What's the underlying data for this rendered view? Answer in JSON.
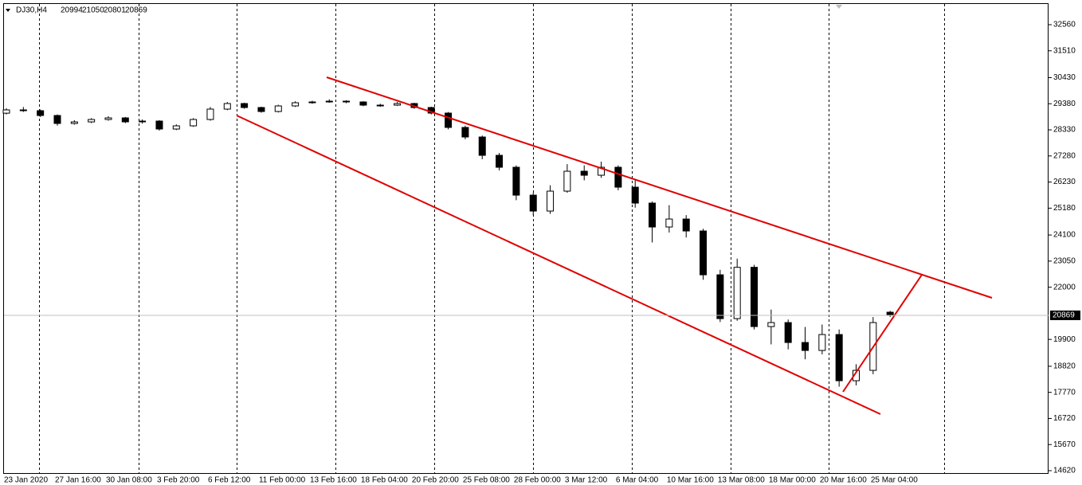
{
  "chart_data": {
    "type": "candlestick",
    "symbol": "DJ30,H4",
    "x_labels": [
      "23 Jan 2020",
      "27 Jan 16:00",
      "30 Jan 08:00",
      "3 Feb 20:00",
      "6 Feb 12:00",
      "11 Feb 00:00",
      "13 Feb 16:00",
      "18 Feb 04:00",
      "20 Feb 20:00",
      "25 Feb 08:00",
      "28 Feb 00:00",
      "3 Mar 12:00",
      "6 Mar 04:00",
      "10 Mar 16:00",
      "13 Mar 08:00",
      "18 Mar 00:00",
      "20 Mar 16:00",
      "25 Mar 04:00"
    ],
    "open": [
      29000,
      29132,
      29100,
      28907,
      28587,
      28650,
      28747,
      28811,
      28651,
      28683,
      28363,
      28491,
      28747,
      29164,
      29388,
      29228,
      29068,
      29292,
      29420,
      29452,
      29484,
      29452,
      29324,
      29324,
      29388,
      29228,
      29004,
      28427,
      28042,
      27305,
      26825,
      25703,
      25063,
      25864,
      26665,
      26504,
      26825,
      26024,
      25383,
      24422,
      24742,
      24262,
      22499,
      20737,
      22800,
      20417,
      20577,
      19776,
      19456,
      20096,
      18238,
      18655,
      20994
    ],
    "high": [
      29200,
      29250,
      29150,
      28950,
      28720,
      28800,
      28880,
      28850,
      28750,
      28720,
      28550,
      28800,
      29250,
      29450,
      29420,
      29260,
      29340,
      29480,
      29500,
      29560,
      29520,
      29480,
      29380,
      29450,
      29420,
      29260,
      29050,
      28500,
      28100,
      27400,
      26900,
      25800,
      26100,
      26950,
      26900,
      27050,
      26900,
      26300,
      25450,
      25300,
      24900,
      24350,
      22700,
      23150,
      22900,
      21100,
      20700,
      20400,
      20500,
      20300,
      18900,
      20800,
      21050
    ],
    "low": [
      28950,
      29050,
      28850,
      28500,
      28540,
      28600,
      28700,
      28600,
      28580,
      28300,
      28320,
      28450,
      28700,
      29120,
      29180,
      29020,
      29030,
      29250,
      29380,
      29420,
      29400,
      29280,
      29260,
      29290,
      29180,
      28950,
      28350,
      27950,
      27150,
      26700,
      25500,
      24900,
      24950,
      25800,
      26300,
      26400,
      25900,
      25200,
      23800,
      24200,
      24000,
      22300,
      20600,
      20650,
      20300,
      19700,
      19500,
      19100,
      19300,
      18000,
      18050,
      18500,
      20801
    ],
    "close": [
      29132,
      29100,
      28907,
      28587,
      28650,
      28747,
      28811,
      28651,
      28683,
      28363,
      28491,
      28747,
      29164,
      29388,
      29228,
      29068,
      29292,
      29420,
      29452,
      29484,
      29452,
      29324,
      29324,
      29388,
      29228,
      29004,
      28427,
      28042,
      27305,
      26825,
      25703,
      25063,
      25864,
      26665,
      26504,
      26825,
      26024,
      25383,
      24422,
      24742,
      24262,
      22499,
      20737,
      22800,
      20417,
      20577,
      19776,
      19456,
      20096,
      18238,
      18655,
      20577,
      20869
    ],
    "ylim": [
      14524,
      33393
    ],
    "yticks": [
      14620,
      15670,
      16720,
      17770,
      18820,
      19900,
      22000,
      23050,
      24100,
      25180,
      26230,
      27280,
      28330,
      29380,
      30430,
      31510,
      32560
    ],
    "color_up": "#ffffff",
    "color_down": "#000000",
    "outline": "#000000"
  }
}
